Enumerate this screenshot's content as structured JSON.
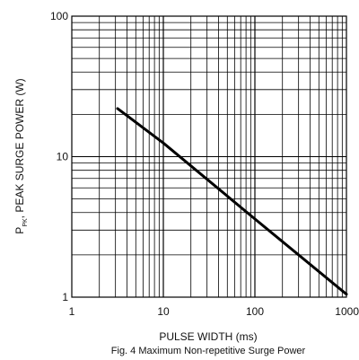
{
  "chart_data": {
    "type": "line",
    "x_scale": "log",
    "y_scale": "log",
    "xlim": [
      1,
      1000
    ],
    "ylim": [
      1,
      100
    ],
    "grid": true,
    "x_ticks": [
      "1",
      "10",
      "100",
      "1000"
    ],
    "y_ticks": [
      "100",
      "10",
      "1"
    ],
    "xlabel": "PULSE WIDTH (ms)",
    "ylabel": {
      "prefix": "P",
      "subscript": "PK",
      "suffix": ", PEAK SURGE POWER (W)"
    },
    "caption": "Fig. 4  Maximum Non-repetitive Surge Power",
    "series": [
      {
        "x": [
          3.16,
          10,
          100,
          1000
        ],
        "y": [
          22,
          12.5,
          3.6,
          1.05
        ],
        "color": "#000000"
      }
    ]
  }
}
